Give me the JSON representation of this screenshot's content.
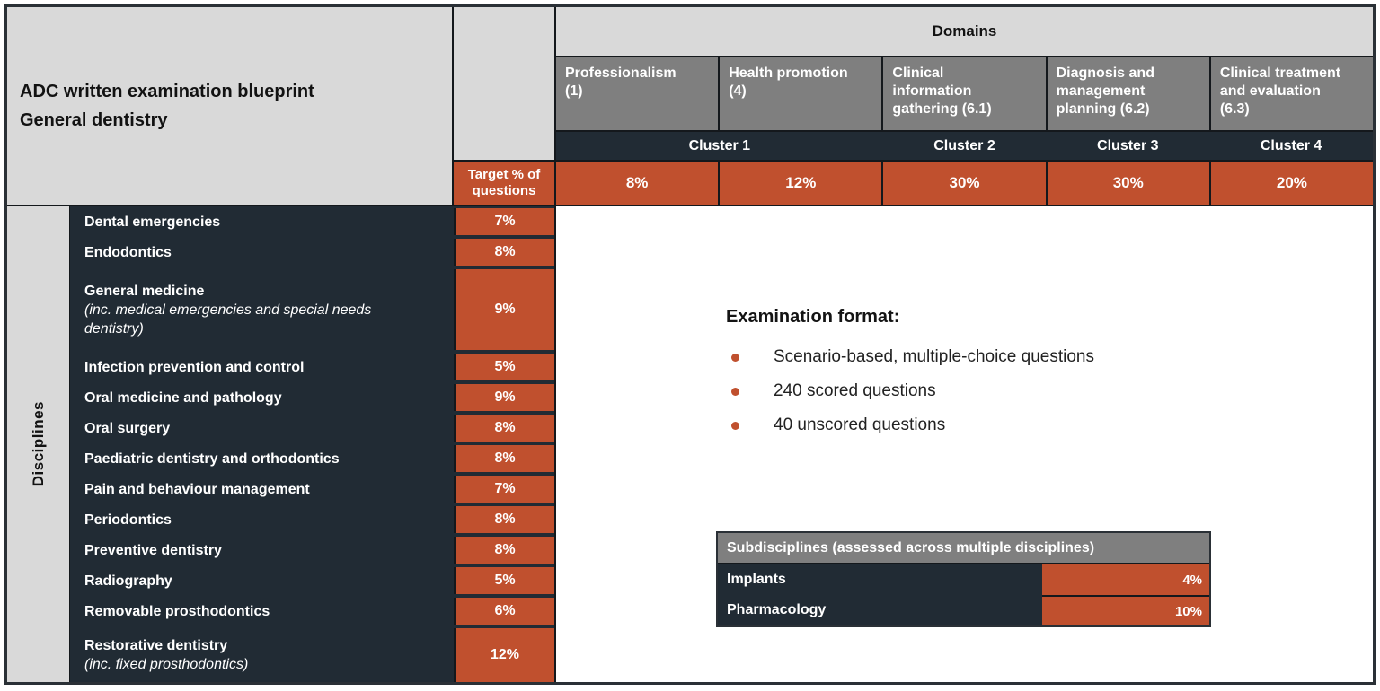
{
  "title": {
    "line1": "ADC written examination blueprint",
    "line2": "General dentistry"
  },
  "domains": {
    "header": "Domains",
    "columns": [
      {
        "label": "Professionalism\n(1)"
      },
      {
        "label": "Health promotion\n(4)"
      },
      {
        "label": "Clinical\ninformation\ngathering (6.1)"
      },
      {
        "label": "Diagnosis and\nmanagement\nplanning (6.2)"
      },
      {
        "label": "Clinical treatment\nand evaluation\n(6.3)"
      }
    ],
    "clusters": [
      "Cluster 1",
      "Cluster 2",
      "Cluster 3",
      "Cluster 4"
    ],
    "percentages": [
      "8%",
      "12%",
      "30%",
      "30%",
      "20%"
    ]
  },
  "disciplines": {
    "label": "Disciplines",
    "target_header": "Target % of questions",
    "rows": [
      {
        "name": "Dental emergencies",
        "pct": "7%"
      },
      {
        "name": "Endodontics",
        "pct": "8%"
      },
      {
        "name": "General medicine",
        "note": "(inc. medical emergencies and special needs\ndentistry)",
        "pct": "9%"
      },
      {
        "name": "Infection prevention and control",
        "pct": "5%"
      },
      {
        "name": "Oral medicine and pathology",
        "pct": "9%"
      },
      {
        "name": "Oral surgery",
        "pct": "8%"
      },
      {
        "name": "Paediatric dentistry and orthodontics",
        "pct": "8%"
      },
      {
        "name": "Pain and behaviour management",
        "pct": "7%"
      },
      {
        "name": "Periodontics",
        "pct": "8%"
      },
      {
        "name": "Preventive dentistry",
        "pct": "8%"
      },
      {
        "name": "Radiography",
        "pct": "5%"
      },
      {
        "name": "Removable prosthodontics",
        "pct": "6%"
      },
      {
        "name": "Restorative dentistry",
        "note": "(inc. fixed prosthodontics)",
        "pct": "12%"
      }
    ]
  },
  "exam_format": {
    "heading": "Examination format:",
    "bullets": [
      "Scenario-based, multiple-choice questions",
      "240 scored questions",
      "40 unscored questions"
    ]
  },
  "subdisciplines": {
    "header": "Subdisciplines (assessed across multiple disciplines)",
    "rows": [
      {
        "name": "Implants",
        "pct": "4%"
      },
      {
        "name": "Pharmacology",
        "pct": "10%"
      }
    ]
  },
  "colors": {
    "accent_orange": "#C0502E",
    "dark_navy": "#212B34",
    "mid_gray": "#7F7F7F",
    "light_gray": "#D9D9D9"
  }
}
